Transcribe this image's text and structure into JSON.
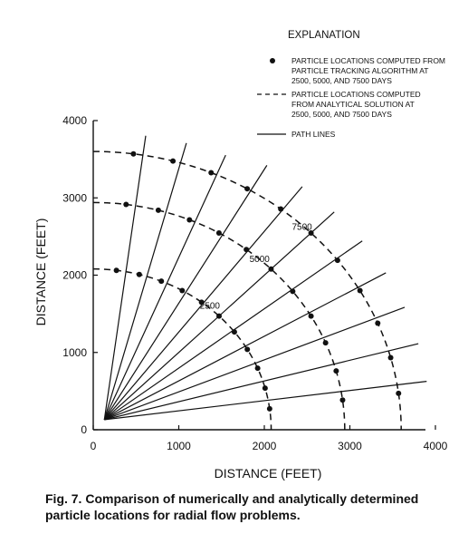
{
  "chart_data": {
    "type": "scatter",
    "xlabel": "DISTANCE (FEET)",
    "ylabel": "DISTANCE (FEET)",
    "xlim": [
      0,
      4000
    ],
    "ylim": [
      0,
      4000
    ],
    "xticks": [
      "0",
      "1000",
      "2000",
      "3000",
      "4000"
    ],
    "yticks": [
      "0",
      "1000",
      "2000",
      "3000",
      "4000"
    ],
    "grid": false,
    "legend_position": "top-right",
    "legend": {
      "title": "EXPLANATION",
      "entries": [
        {
          "marker": "dot",
          "lines": [
            "PARTICLE LOCATIONS COMPUTED FROM",
            "PARTICLE TRACKING ALGORITHM AT",
            "2500, 5000, AND 7500 DAYS"
          ]
        },
        {
          "marker": "dashed",
          "lines": [
            "PARTICLE LOCATIONS COMPUTED",
            "FROM ANALYTICAL SOLUTION AT",
            "2500, 5000, AND 7500 DAYS"
          ]
        },
        {
          "marker": "solid",
          "lines": [
            "PATH LINES"
          ]
        }
      ]
    },
    "path_line_angles_deg": [
      7.5,
      15,
      22.5,
      30,
      37.5,
      45,
      52.5,
      60,
      67.5,
      75,
      82.5
    ],
    "path_line_end_radius_ft": 3800,
    "analytical_radii_ft": [
      {
        "label": "2500",
        "radius": 2080
      },
      {
        "label": "5000",
        "radius": 2940
      },
      {
        "label": "7500",
        "radius": 3600
      }
    ],
    "particles": [
      {
        "time": "2500",
        "x": [
          2062,
          2009,
          1922,
          1801,
          1650,
          1471,
          1266,
          1040,
          796,
          538,
          271
        ],
        "y": [
          271,
          538,
          796,
          1040,
          1266,
          1471,
          1650,
          1801,
          1922,
          2009,
          2062
        ]
      },
      {
        "time": "5000",
        "x": [
          2915,
          2840,
          2716,
          2546,
          2332,
          2079,
          1790,
          1470,
          1125,
          761,
          384
        ],
        "y": [
          384,
          761,
          1125,
          1470,
          1790,
          2079,
          2332,
          2546,
          2716,
          2840,
          2915
        ]
      },
      {
        "time": "7500",
        "x": [
          3569,
          3477,
          3326,
          3118,
          2856,
          2546,
          2192,
          1800,
          1378,
          932,
          470
        ],
        "y": [
          470,
          932,
          1378,
          1800,
          2192,
          2546,
          2856,
          3118,
          3326,
          3477,
          3569
        ]
      }
    ]
  },
  "caption": "Fig. 7. Comparison of numerically and analytically determined particle locations for radial flow problems."
}
